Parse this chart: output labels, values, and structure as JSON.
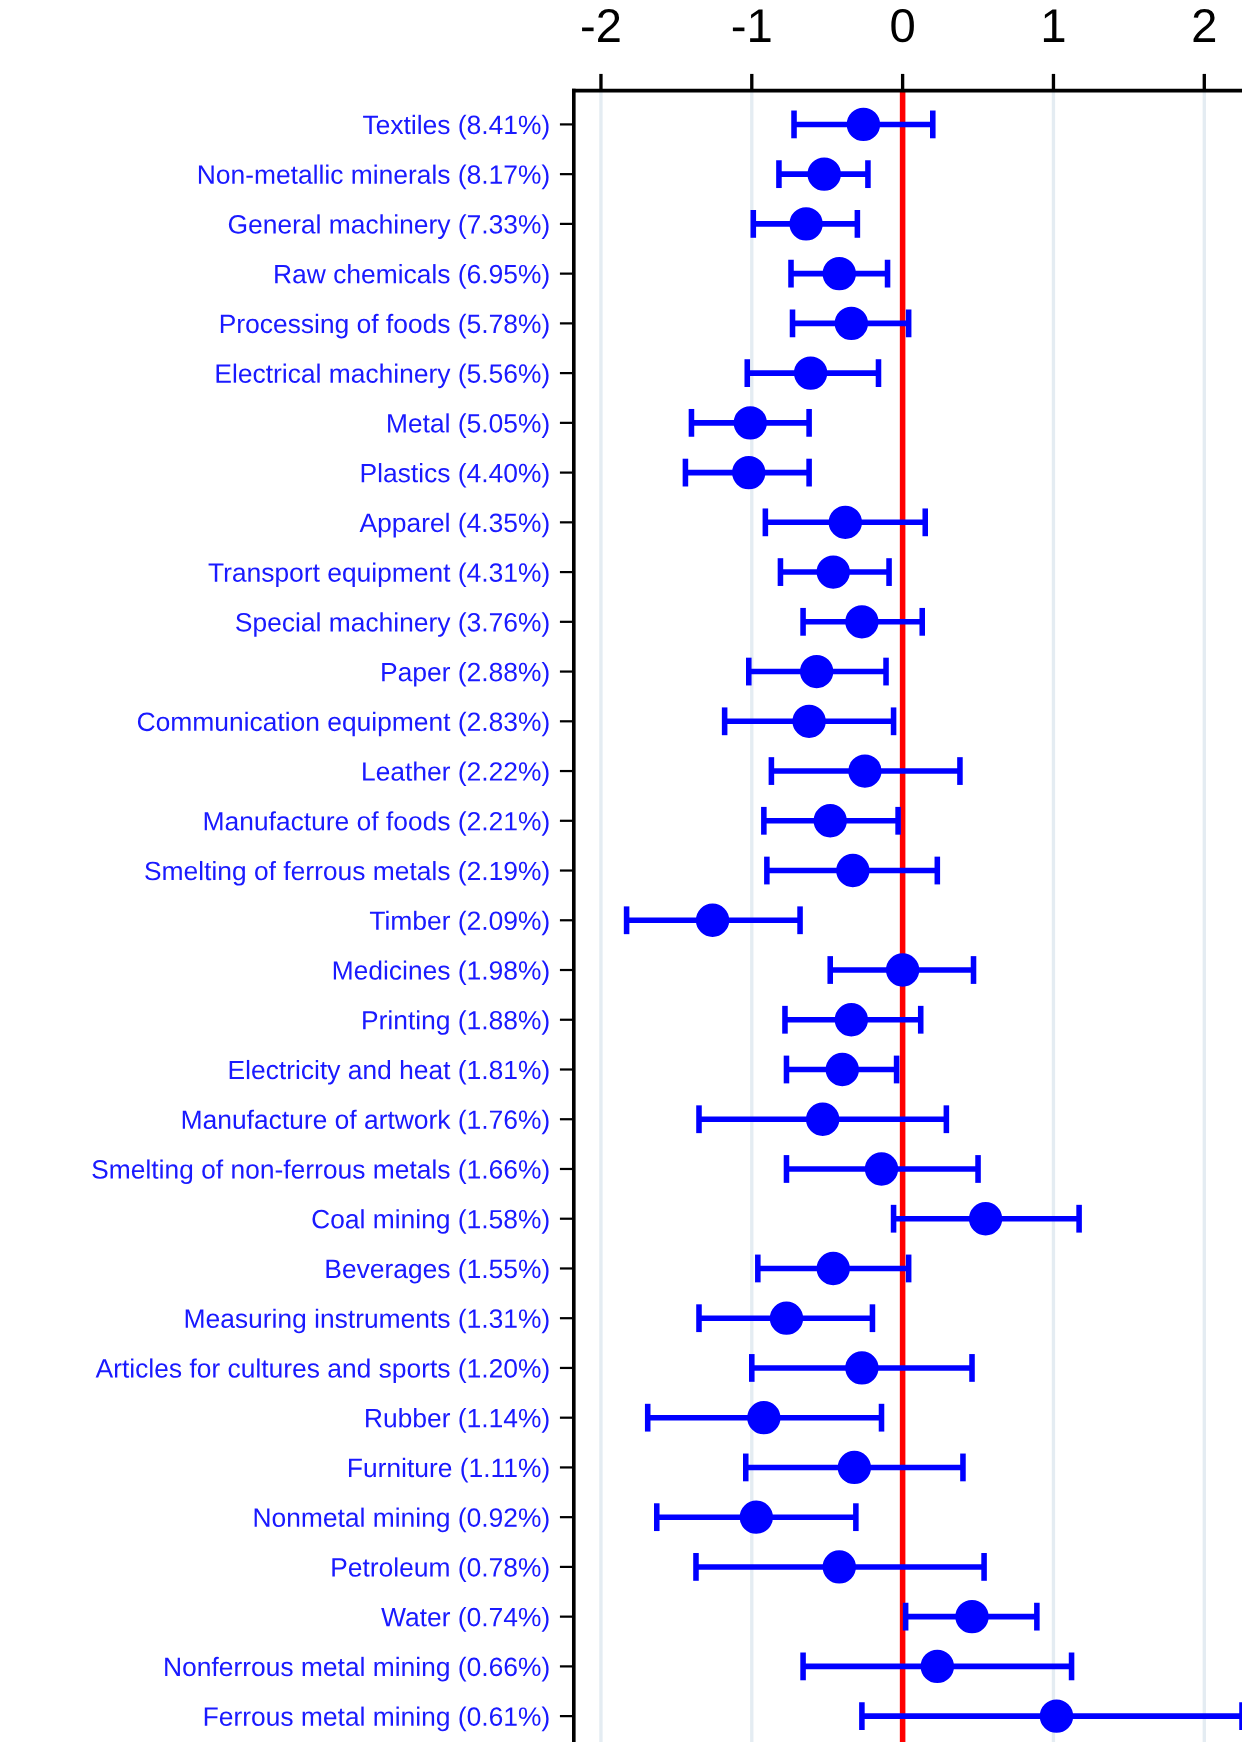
{
  "chart_data": {
    "type": "scatter",
    "orientation": "horizontal",
    "categories": [
      "Textiles (8.41%)",
      "Non-metallic minerals (8.17%)",
      "General machinery (7.33%)",
      "Raw chemicals (6.95%)",
      "Processing of foods (5.78%)",
      "Electrical machinery (5.56%)",
      "Metal (5.05%)",
      "Plastics (4.40%)",
      "Apparel (4.35%)",
      "Transport equipment (4.31%)",
      "Special machinery (3.76%)",
      "Paper (2.88%)",
      "Communication equipment (2.83%)",
      "Leather (2.22%)",
      "Manufacture of foods (2.21%)",
      "Smelting of ferrous metals (2.19%)",
      "Timber (2.09%)",
      "Medicines (1.98%)",
      "Printing (1.88%)",
      "Electricity and heat (1.81%)",
      "Manufacture of artwork (1.76%)",
      "Smelting of non-ferrous metals (1.66%)",
      "Coal mining (1.58%)",
      "Beverages (1.55%)",
      "Measuring instruments (1.31%)",
      "Articles for cultures and sports (1.20%)",
      "Rubber (1.14%)",
      "Furniture (1.11%)",
      "Nonmetal mining (0.92%)",
      "Petroleum (0.78%)",
      "Water (0.74%)",
      "Nonferrous metal mining (0.66%)",
      "Ferrous metal mining (0.61%)"
    ],
    "series": [
      {
        "color": "#0000ff",
        "values": [
          -0.26,
          -0.52,
          -0.64,
          -0.42,
          -0.34,
          -0.61,
          -1.01,
          -1.02,
          -0.38,
          -0.46,
          -0.27,
          -0.57,
          -0.62,
          -0.25,
          -0.48,
          -0.33,
          -1.26,
          0.0,
          -0.34,
          -0.4,
          -0.53,
          -0.14,
          0.55,
          -0.46,
          -0.77,
          -0.27,
          -0.92,
          -0.32,
          -0.97,
          -0.42,
          0.46,
          0.23,
          1.02
        ],
        "errors": [
          [
            -0.72,
            0.2
          ],
          [
            -0.82,
            -0.23
          ],
          [
            -0.99,
            -0.3
          ],
          [
            -0.74,
            -0.1
          ],
          [
            -0.73,
            0.04
          ],
          [
            -1.03,
            -0.16
          ],
          [
            -1.4,
            -0.62
          ],
          [
            -1.44,
            -0.62
          ],
          [
            -0.91,
            0.15
          ],
          [
            -0.81,
            -0.09
          ],
          [
            -0.66,
            0.13
          ],
          [
            -1.02,
            -0.11
          ],
          [
            -1.18,
            -0.06
          ],
          [
            -0.87,
            0.38
          ],
          [
            -0.92,
            -0.03
          ],
          [
            -0.9,
            0.23
          ],
          [
            -1.83,
            -0.68
          ],
          [
            -0.48,
            0.47
          ],
          [
            -0.78,
            0.12
          ],
          [
            -0.77,
            -0.04
          ],
          [
            -1.35,
            0.29
          ],
          [
            -0.77,
            0.5
          ],
          [
            -0.06,
            1.17
          ],
          [
            -0.96,
            0.04
          ],
          [
            -1.35,
            -0.2
          ],
          [
            -1.0,
            0.46
          ],
          [
            -1.69,
            -0.14
          ],
          [
            -1.04,
            0.4
          ],
          [
            -1.63,
            -0.31
          ],
          [
            -1.37,
            0.54
          ],
          [
            0.02,
            0.89
          ],
          [
            -0.66,
            1.12
          ],
          [
            -0.27,
            2.25
          ]
        ]
      }
    ],
    "xlim": [
      -2.18,
      2.25
    ],
    "xticks": [
      -2,
      -1,
      0,
      1,
      2
    ],
    "ref_lines": [
      {
        "axis": "x",
        "value": 0,
        "color": "#ff0000"
      }
    ],
    "grid": "x",
    "marker": "circle"
  }
}
